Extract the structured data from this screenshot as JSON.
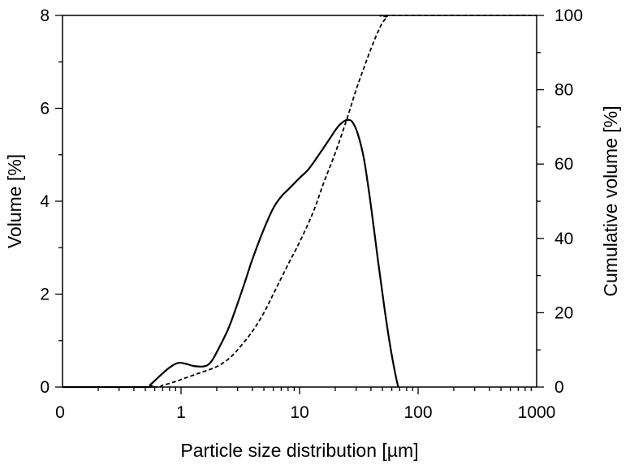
{
  "chart_data": {
    "type": "line",
    "xlabel": "Particle size distribution [µm]",
    "ylabel_left": "Volume [%]",
    "ylabel_right": "Cumulative volume [%]",
    "x_scale": "log",
    "x_axis_label_zero": "0",
    "xlim": [
      0.1,
      1000
    ],
    "ylim_left": [
      0,
      8
    ],
    "ylim_right": [
      0,
      100
    ],
    "x_ticks": [
      {
        "value": 1,
        "label": "1"
      },
      {
        "value": 10,
        "label": "10"
      },
      {
        "value": 100,
        "label": "100"
      },
      {
        "value": 1000,
        "label": "1000"
      }
    ],
    "y_ticks_left": [
      {
        "value": 0,
        "label": "0"
      },
      {
        "value": 2,
        "label": "2"
      },
      {
        "value": 4,
        "label": "4"
      },
      {
        "value": 6,
        "label": "6"
      },
      {
        "value": 8,
        "label": "8"
      }
    ],
    "y_ticks_right": [
      {
        "value": 0,
        "label": "0"
      },
      {
        "value": 20,
        "label": "20"
      },
      {
        "value": 40,
        "label": "40"
      },
      {
        "value": 60,
        "label": "60"
      },
      {
        "value": 80,
        "label": "80"
      },
      {
        "value": 100,
        "label": "100"
      }
    ],
    "grid": false,
    "series": [
      {
        "axis": "left",
        "style": "solid",
        "points": [
          [
            0.1,
            0
          ],
          [
            0.5,
            0
          ],
          [
            0.55,
            0.05
          ],
          [
            0.65,
            0.22
          ],
          [
            0.8,
            0.42
          ],
          [
            0.95,
            0.52
          ],
          [
            1.1,
            0.5
          ],
          [
            1.3,
            0.45
          ],
          [
            1.6,
            0.45
          ],
          [
            1.8,
            0.55
          ],
          [
            2.0,
            0.75
          ],
          [
            2.5,
            1.25
          ],
          [
            3.0,
            1.8
          ],
          [
            3.5,
            2.3
          ],
          [
            4.0,
            2.75
          ],
          [
            5.0,
            3.4
          ],
          [
            6.0,
            3.85
          ],
          [
            7.0,
            4.1
          ],
          [
            8.0,
            4.25
          ],
          [
            10.0,
            4.5
          ],
          [
            12.0,
            4.7
          ],
          [
            15.0,
            5.05
          ],
          [
            18.0,
            5.35
          ],
          [
            21.0,
            5.6
          ],
          [
            24.0,
            5.73
          ],
          [
            26.0,
            5.75
          ],
          [
            28.0,
            5.7
          ],
          [
            31.0,
            5.45
          ],
          [
            35.0,
            4.9
          ],
          [
            40.0,
            3.9
          ],
          [
            46.0,
            2.7
          ],
          [
            52.0,
            1.7
          ],
          [
            58.0,
            0.9
          ],
          [
            64.0,
            0.3
          ],
          [
            68.0,
            0
          ]
        ]
      },
      {
        "axis": "right",
        "style": "dashed",
        "points": [
          [
            0.1,
            0
          ],
          [
            0.55,
            0
          ],
          [
            0.7,
            0.5
          ],
          [
            0.9,
            1.5
          ],
          [
            1.1,
            2.5
          ],
          [
            1.5,
            4.0
          ],
          [
            2.0,
            5.5
          ],
          [
            2.5,
            7.5
          ],
          [
            3.0,
            10.0
          ],
          [
            4.0,
            15.0
          ],
          [
            5.0,
            20.0
          ],
          [
            6.0,
            25.0
          ],
          [
            8.0,
            33.0
          ],
          [
            10.0,
            39.0
          ],
          [
            13.0,
            47.0
          ],
          [
            16.0,
            55.0
          ],
          [
            20.0,
            63.0
          ],
          [
            25.0,
            72.0
          ],
          [
            30.0,
            80.0
          ],
          [
            35.0,
            86.0
          ],
          [
            40.0,
            91.0
          ],
          [
            45.0,
            95.0
          ],
          [
            50.0,
            98.0
          ],
          [
            55.0,
            99.5
          ],
          [
            60.0,
            100
          ],
          [
            1000,
            100
          ]
        ]
      }
    ]
  }
}
